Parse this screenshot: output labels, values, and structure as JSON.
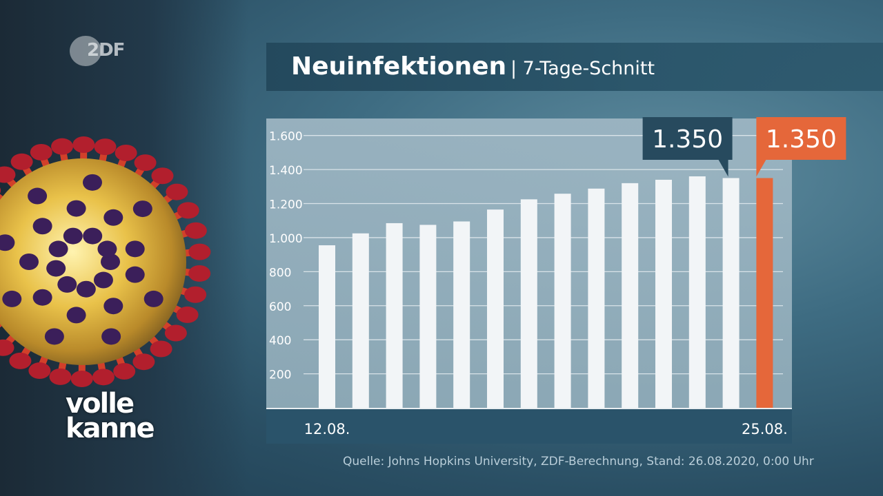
{
  "branding": {
    "channel_logo": "2DF",
    "show_logo_line1": "volle",
    "show_logo_line2": "kanne",
    "logo_color": "#c8cdd2"
  },
  "header": {
    "title": "Neuinfektionen",
    "subtitle": "| 7-Tage-Schnitt"
  },
  "source_text": "Quelle: Johns Hopkins University, ZDF-Berechnung, Stand: 26.08.2020, 0:00 Uhr",
  "colors": {
    "bar": "#f2f5f7",
    "highlight_bar": "#e5673a",
    "callout_dark": "#274a5e",
    "callout_highlight": "#e5673a"
  },
  "chart_data": {
    "type": "bar",
    "categories": [
      "12.08.",
      "",
      "",
      "",
      "",
      "",
      "",
      "",
      "",
      "",
      "",
      "",
      "",
      "25.08."
    ],
    "values": [
      955,
      1025,
      1085,
      1075,
      1095,
      1165,
      1225,
      1258,
      1288,
      1320,
      1340,
      1360,
      1350,
      1350
    ],
    "highlight_index": 13,
    "ylim": [
      0,
      1700
    ],
    "yticks": [
      {
        "value": 200,
        "label": "200"
      },
      {
        "value": 400,
        "label": "400"
      },
      {
        "value": 600,
        "label": "600"
      },
      {
        "value": 800,
        "label": "800"
      },
      {
        "value": 1000,
        "label": "1.000"
      },
      {
        "value": 1200,
        "label": "1.200"
      },
      {
        "value": 1400,
        "label": "1.400"
      },
      {
        "value": 1600,
        "label": "1.600"
      }
    ],
    "grid": true,
    "annotations": [
      {
        "index": 12,
        "label": "1.350",
        "style": "dark"
      },
      {
        "index": 13,
        "label": "1.350",
        "style": "highlight"
      }
    ]
  }
}
